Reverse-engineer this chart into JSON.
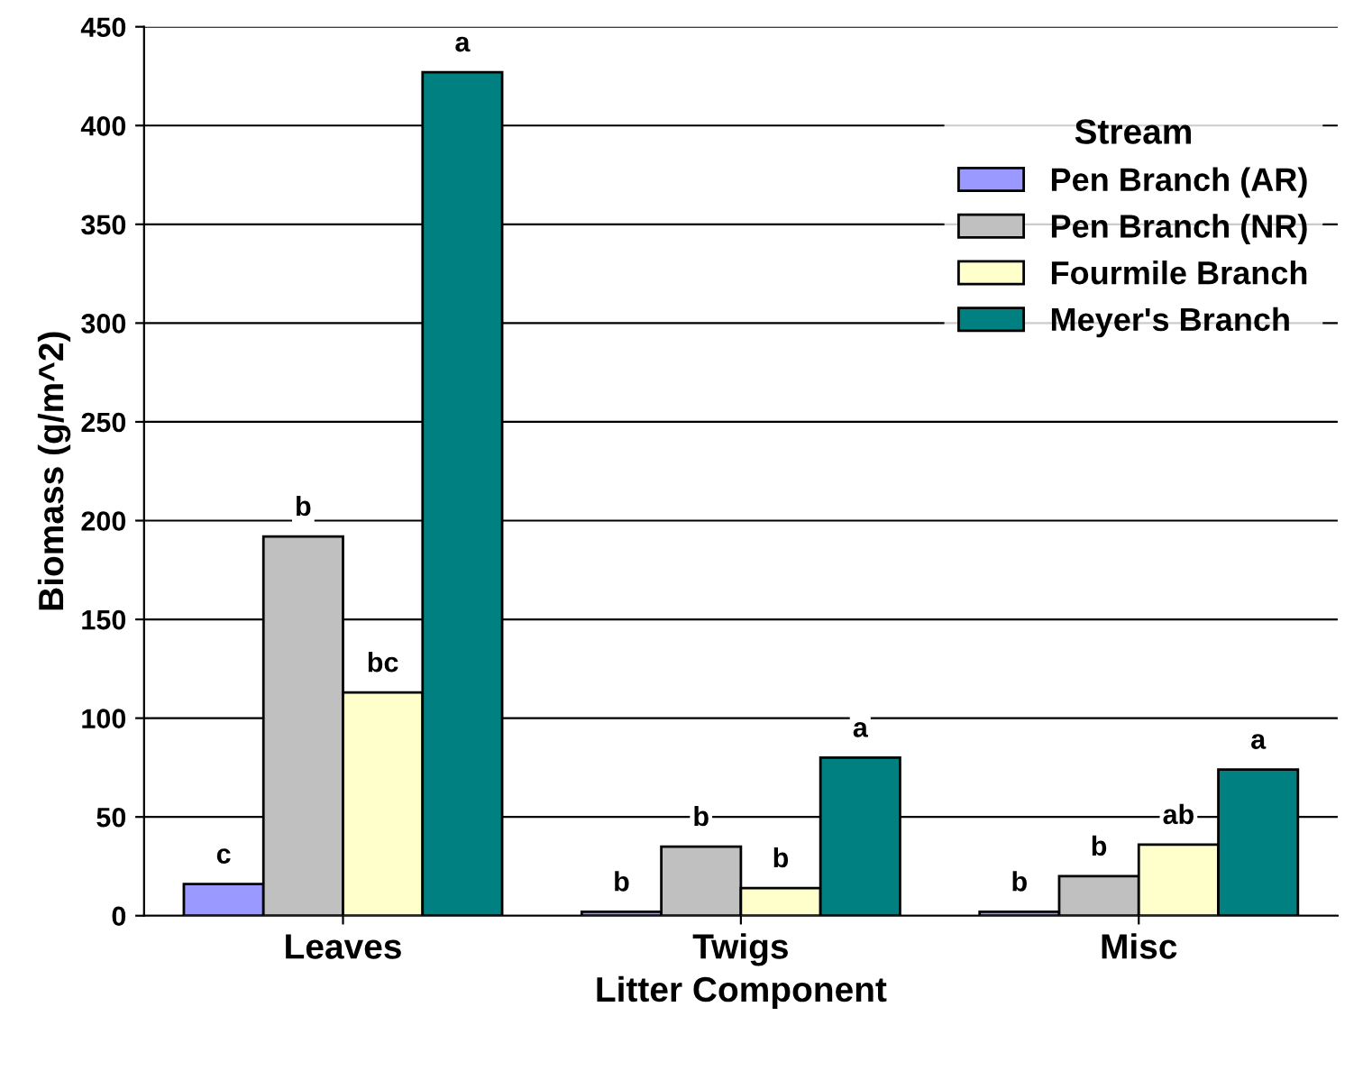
{
  "chart_data": {
    "type": "bar",
    "xlabel": "Litter Component",
    "ylabel": "Biomass (g/m^2)",
    "legend_title": "Stream",
    "categories": [
      "Leaves",
      "Twigs",
      "Misc"
    ],
    "series": [
      {
        "name": "Pen Branch (AR)",
        "color": "#9999ff",
        "values": [
          16,
          2,
          2
        ]
      },
      {
        "name": "Pen Branch (NR)",
        "color": "#c0c0c0",
        "values": [
          192,
          35,
          20
        ]
      },
      {
        "name": "Fourmile Branch",
        "color": "#ffffcc",
        "values": [
          113,
          14,
          36
        ]
      },
      {
        "name": "Meyer's Branch",
        "color": "#008080",
        "values": [
          427,
          80,
          74
        ]
      }
    ],
    "annotations": [
      "c",
      "b",
      "bc",
      "a",
      "b",
      "b",
      "b",
      "a",
      "b",
      "b",
      "ab",
      "a"
    ],
    "ylim": [
      0,
      450
    ],
    "yticks": [
      0,
      50,
      100,
      150,
      200,
      250,
      300,
      350,
      400,
      450
    ],
    "grid": "y",
    "legend": "top right"
  }
}
